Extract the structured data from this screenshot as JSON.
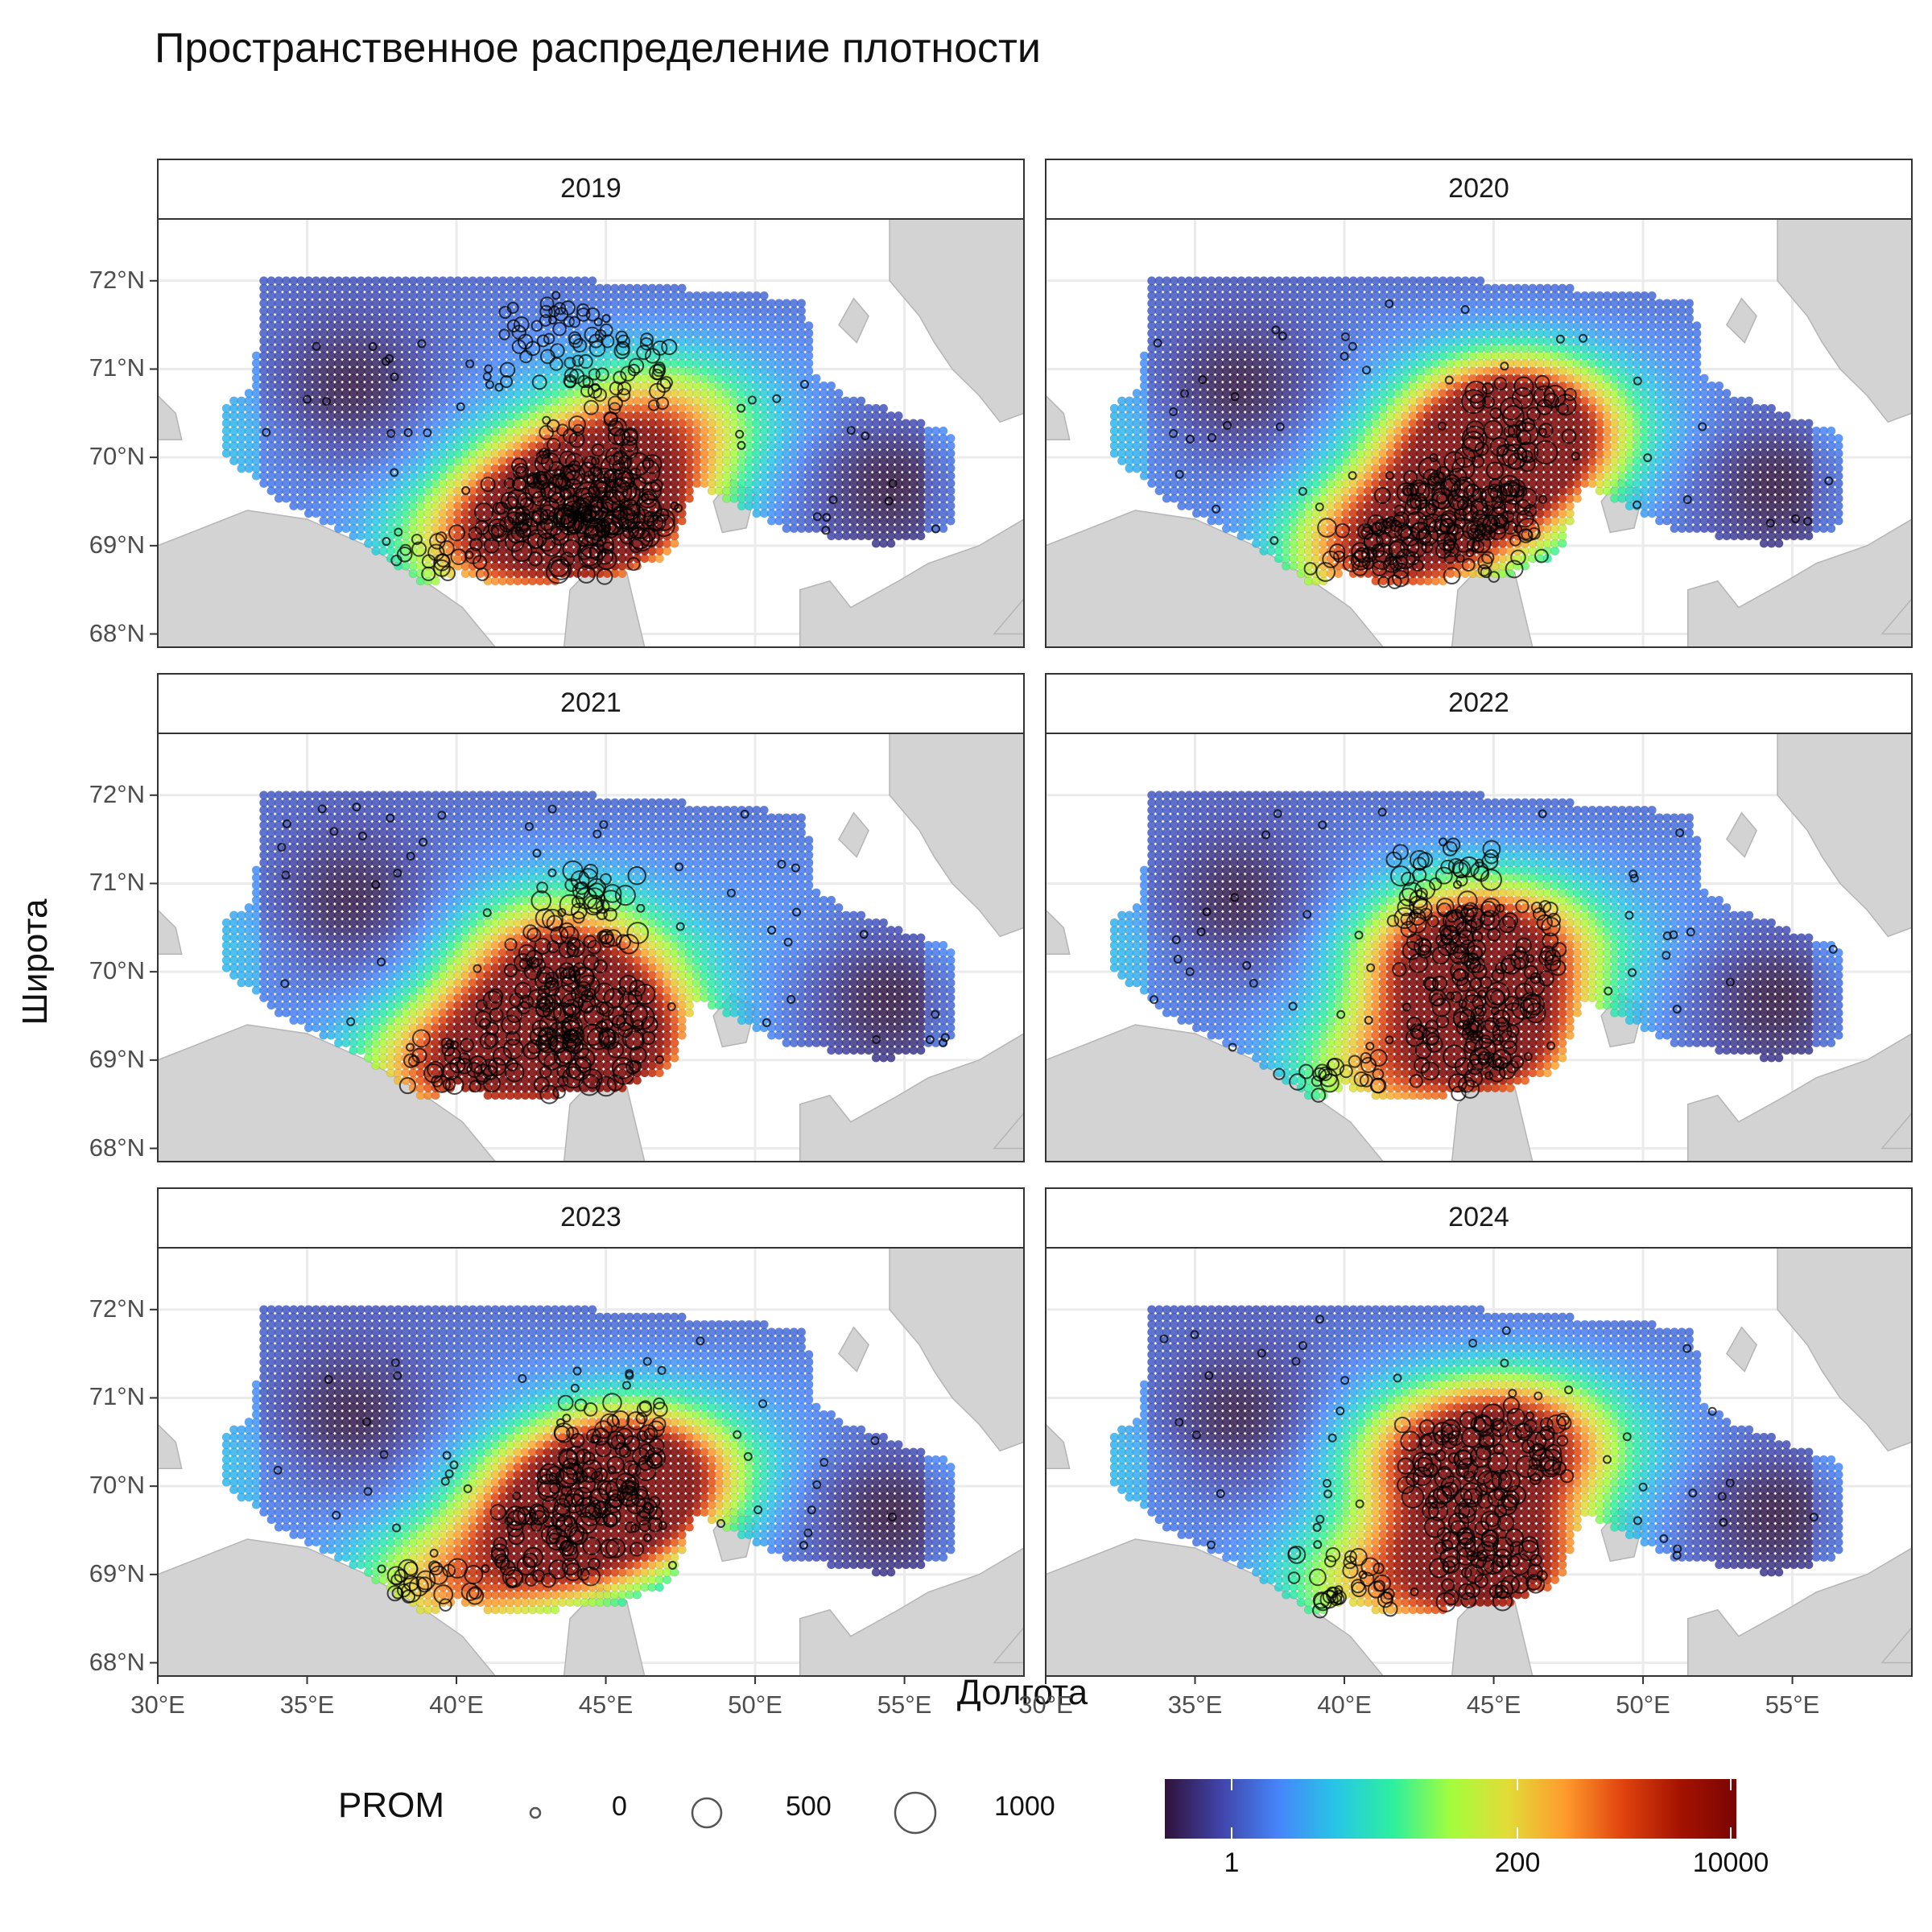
{
  "title": "Пространственное распределение плотности",
  "xlabel": "Долгота",
  "ylabel": "Широта",
  "x_ticks": [
    "30°E",
    "35°E",
    "40°E",
    "45°E",
    "50°E",
    "55°E"
  ],
  "y_ticks": [
    "72°N",
    "71°N",
    "70°N",
    "69°N",
    "68°N"
  ],
  "x_range": [
    30,
    59
  ],
  "y_range": [
    67.85,
    72.7
  ],
  "legend": {
    "size_title": "PROM",
    "size_labels": [
      "0",
      "500",
      "1000"
    ],
    "color_labels": [
      "1",
      "200",
      "10000"
    ]
  },
  "colors": {
    "land": "#d3d3d3",
    "grid": "#ebebeb",
    "panel_border": "#333333",
    "palette": [
      "#30123b",
      "#4145ab",
      "#4686fa",
      "#27c6e6",
      "#2df09d",
      "#a3fd3c",
      "#e2dc38",
      "#fe9b2d",
      "#e1440e",
      "#a51301",
      "#7a0403"
    ]
  },
  "chart_data": {
    "type": "faceted-map",
    "facets": [
      {
        "label": "2019",
        "hotspots": [
          [
            45.0,
            69.6,
            1.0
          ],
          [
            44.5,
            69.2,
            0.9
          ],
          [
            43.0,
            69.4,
            0.75
          ],
          [
            46.8,
            70.4,
            0.7
          ],
          [
            40.5,
            68.9,
            0.6
          ]
        ],
        "stations": [
          [
            44.8,
            69.5,
            1.0
          ],
          [
            45.3,
            69.5,
            0.9
          ],
          [
            45.0,
            69.0,
            0.85
          ],
          [
            43.5,
            69.3,
            0.7
          ],
          [
            42.5,
            69.5,
            0.6
          ],
          [
            44.2,
            70.0,
            0.5
          ],
          [
            39.5,
            68.7,
            0.4
          ],
          [
            45.5,
            71.0,
            0.35
          ],
          [
            43.2,
            71.3,
            0.3
          ]
        ]
      },
      {
        "label": "2020",
        "hotspots": [
          [
            45.8,
            70.4,
            0.95
          ],
          [
            44.5,
            69.6,
            0.95
          ],
          [
            42.5,
            69.2,
            0.75
          ],
          [
            40.8,
            68.8,
            0.7
          ],
          [
            45.5,
            70.2,
            0.9
          ]
        ],
        "stations": [
          [
            46.0,
            70.4,
            0.9
          ],
          [
            44.5,
            69.6,
            0.8
          ],
          [
            43.5,
            69.4,
            0.7
          ],
          [
            42.0,
            69.2,
            0.6
          ],
          [
            40.5,
            68.8,
            0.6
          ],
          [
            45.0,
            69.0,
            0.5
          ]
        ]
      },
      {
        "label": "2021",
        "hotspots": [
          [
            44.5,
            69.5,
            0.95
          ],
          [
            45.0,
            69.0,
            0.9
          ],
          [
            43.5,
            70.2,
            0.75
          ],
          [
            42.0,
            69.3,
            0.8
          ],
          [
            39.5,
            68.8,
            0.8
          ]
        ],
        "stations": [
          [
            44.8,
            69.6,
            0.9
          ],
          [
            44.5,
            70.7,
            0.7
          ],
          [
            44.5,
            69.0,
            0.8
          ],
          [
            42.5,
            69.3,
            0.6
          ],
          [
            39.5,
            68.8,
            0.6
          ],
          [
            43.5,
            70.0,
            0.5
          ]
        ]
      },
      {
        "label": "2022",
        "hotspots": [
          [
            44.5,
            69.5,
            0.9
          ],
          [
            43.5,
            70.2,
            0.75
          ],
          [
            45.5,
            70.3,
            0.75
          ],
          [
            41.0,
            68.8,
            0.6
          ],
          [
            45.0,
            69.0,
            0.75
          ]
        ],
        "stations": [
          [
            44.8,
            69.4,
            0.8
          ],
          [
            43.3,
            71.0,
            0.7
          ],
          [
            43.5,
            70.3,
            0.6
          ],
          [
            45.5,
            70.3,
            0.6
          ],
          [
            39.5,
            68.6,
            0.5
          ],
          [
            44.0,
            69.0,
            0.5
          ]
        ]
      },
      {
        "label": "2023",
        "hotspots": [
          [
            44.5,
            69.7,
            0.9
          ],
          [
            45.2,
            70.0,
            0.85
          ],
          [
            43.0,
            69.3,
            0.75
          ],
          [
            39.5,
            68.8,
            0.7
          ],
          [
            46.5,
            70.2,
            0.7
          ]
        ],
        "stations": [
          [
            44.5,
            69.7,
            0.8
          ],
          [
            45.0,
            70.0,
            0.7
          ],
          [
            43.0,
            69.3,
            0.6
          ],
          [
            39.5,
            68.7,
            0.6
          ],
          [
            45.2,
            70.5,
            0.6
          ]
        ]
      },
      {
        "label": "2024",
        "hotspots": [
          [
            43.5,
            70.3,
            0.95
          ],
          [
            46.0,
            70.5,
            0.95
          ],
          [
            44.5,
            69.3,
            0.9
          ],
          [
            45.0,
            69.0,
            0.8
          ],
          [
            40.5,
            68.8,
            0.55
          ]
        ],
        "stations": [
          [
            43.5,
            70.3,
            0.8
          ],
          [
            45.8,
            70.5,
            0.8
          ],
          [
            44.5,
            69.5,
            0.7
          ],
          [
            45.0,
            69.0,
            0.6
          ],
          [
            40.0,
            68.8,
            0.5
          ]
        ]
      }
    ]
  }
}
